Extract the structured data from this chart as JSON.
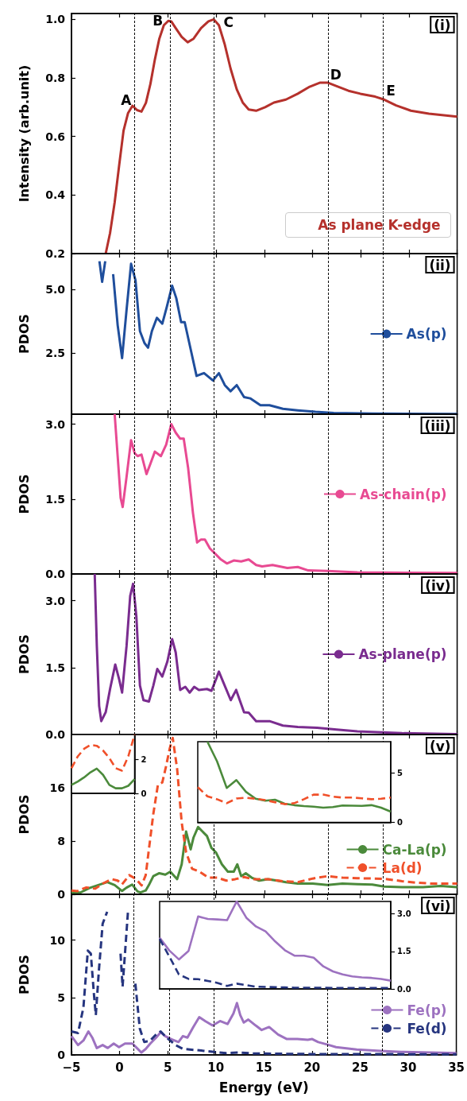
{
  "chart_data": [
    {
      "type": "line",
      "ylabel": "Intensity (arb.unit)",
      "xlim": [
        -5,
        35
      ],
      "xticks": [
        -5,
        0,
        5,
        10,
        15,
        20,
        25,
        30,
        35
      ],
      "ylim": [
        0.2,
        1.02
      ],
      "yticks": [
        0.2,
        0.4,
        0.6,
        0.8,
        {
          "value": 1,
          "label": "1.0"
        }
      ],
      "tick_labels": "y",
      "legend": "bottom right",
      "marker": "none",
      "annotations": [
        "(i)",
        {
          "text": "A",
          "x": 1.5,
          "y": 0.7
        },
        {
          "text": "B",
          "x": 5.2,
          "y": 1.0
        },
        {
          "text": "C",
          "x": 9.8,
          "y": 1.0
        },
        {
          "text": "D",
          "x": 21.6,
          "y": 0.785
        },
        {
          "text": "E",
          "x": 27.3,
          "y": 0.73
        }
      ],
      "ref_lines": [
        {
          "axis": "x",
          "value": 1.5,
          "color": "#000000",
          "line_style": "dashed"
        },
        {
          "axis": "x",
          "value": 5.2,
          "color": "#000000",
          "line_style": "dashed"
        },
        {
          "axis": "x",
          "value": 9.8,
          "color": "#000000",
          "line_style": "dashed"
        },
        {
          "axis": "x",
          "value": 21.6,
          "color": "#000000",
          "line_style": "dashed"
        },
        {
          "axis": "x",
          "value": 27.3,
          "color": "#000000",
          "line_style": "dashed"
        }
      ],
      "series": [
        {
          "name": "As plane K-edge",
          "color": "#b5312c",
          "line_style": "solid",
          "x": [
            -1.45,
            -1.0,
            -0.52,
            -0.06,
            0.4,
            0.87,
            1.33,
            1.8,
            2.26,
            2.72,
            3.19,
            3.65,
            4.11,
            4.58,
            5.04,
            5.35,
            5.81,
            6.43,
            7.05,
            7.66,
            8.44,
            9.2,
            9.76,
            10.29,
            10.9,
            11.5,
            12.14,
            12.76,
            13.38,
            14.15,
            15.08,
            16.0,
            17.24,
            18.47,
            19.71,
            20.8,
            21.56,
            22.5,
            23.73,
            24.96,
            26.5,
            27.43,
            28.67,
            30.2,
            32.07,
            35
          ],
          "values": [
            0.2,
            0.27,
            0.375,
            0.5,
            0.62,
            0.68,
            0.705,
            0.69,
            0.685,
            0.715,
            0.78,
            0.863,
            0.934,
            0.98,
            0.995,
            0.993,
            0.97,
            0.94,
            0.922,
            0.934,
            0.97,
            0.993,
            1.0,
            0.98,
            0.914,
            0.832,
            0.761,
            0.716,
            0.692,
            0.688,
            0.7,
            0.716,
            0.726,
            0.746,
            0.77,
            0.784,
            0.784,
            0.772,
            0.756,
            0.746,
            0.736,
            0.726,
            0.706,
            0.688,
            0.678,
            0.668
          ]
        }
      ]
    },
    {
      "type": "line",
      "ylabel": "PDOS",
      "xlim": [
        -5,
        35
      ],
      "xticks": [
        -5,
        0,
        5,
        10,
        15,
        20,
        25,
        30,
        35
      ],
      "ylim": [
        0.1,
        6.4
      ],
      "yticks": [
        2.5,
        {
          "value": 5,
          "label": "5.0"
        }
      ],
      "tick_labels": "y",
      "legend": "right",
      "marker": "none",
      "annotations": [
        "(ii)"
      ],
      "ref_lines": [
        {
          "axis": "x",
          "value": 1.5,
          "color": "#000000",
          "line_style": "dashed"
        },
        {
          "axis": "x",
          "value": 5.2,
          "color": "#000000",
          "line_style": "dashed"
        },
        {
          "axis": "x",
          "value": 9.8,
          "color": "#000000",
          "line_style": "dashed"
        },
        {
          "axis": "x",
          "value": 21.6,
          "color": "#000000",
          "line_style": "dashed"
        },
        {
          "axis": "x",
          "value": 27.3,
          "color": "#000000",
          "line_style": "dashed"
        }
      ],
      "series": [
        {
          "name": "As(p)",
          "color": "#1f4e9c",
          "line_style": "solid",
          "x": [
            -2.1,
            -1.82,
            -1.5,
            -1.15,
            -0.98,
            -0.68,
            -0.21,
            0.25,
            0.71,
            1.18,
            1.64,
            2.1,
            2.57,
            2.94,
            3.34,
            3.86,
            4.42,
            4.88,
            5.44,
            5.87,
            6.37,
            6.74,
            7.36,
            7.97,
            8.75,
            9.67,
            10.29,
            10.9,
            11.5,
            12.14,
            12.9,
            13.53,
            14.6,
            15.54,
            16.93,
            18.47,
            20.3,
            22.2,
            26.2,
            35
          ],
          "values": [
            6.1,
            5.29,
            6.1,
            null,
            null,
            5.59,
            3.59,
            2.3,
            4.18,
            6.0,
            5.35,
            3.36,
            2.89,
            2.71,
            3.36,
            3.88,
            3.65,
            4.3,
            5.14,
            4.65,
            3.71,
            3.71,
            2.65,
            1.6,
            1.71,
            1.42,
            1.71,
            1.24,
            1.0,
            1.24,
            0.77,
            0.72,
            0.45,
            0.45,
            0.31,
            0.25,
            0.19,
            0.15,
            0.12,
            0.11
          ]
        }
      ]
    },
    {
      "type": "line",
      "ylabel": "PDOS",
      "xlim": [
        -5,
        35
      ],
      "xticks": [
        -5,
        0,
        5,
        10,
        15,
        20,
        25,
        30,
        35
      ],
      "ylim": [
        0,
        3.2
      ],
      "yticks": [
        {
          "value": 0,
          "label": "0.0"
        },
        1.5,
        {
          "value": 3,
          "label": "3.0"
        }
      ],
      "tick_labels": "y",
      "legend": "right",
      "marker": "none",
      "annotations": [
        "(iii)"
      ],
      "ref_lines": [
        {
          "axis": "x",
          "value": 1.5,
          "color": "#000000",
          "line_style": "dashed"
        },
        {
          "axis": "x",
          "value": 5.2,
          "color": "#000000",
          "line_style": "dashed"
        },
        {
          "axis": "x",
          "value": 9.8,
          "color": "#000000",
          "line_style": "dashed"
        },
        {
          "axis": "x",
          "value": 21.6,
          "color": "#000000",
          "line_style": "dashed"
        },
        {
          "axis": "x",
          "value": 27.3,
          "color": "#000000",
          "line_style": "dashed"
        }
      ],
      "series": [
        {
          "name": "As-chain(p)",
          "color": "#e84a92",
          "line_style": "solid",
          "x": [
            -0.52,
            -0.21,
            0.1,
            0.31,
            0.71,
            1.18,
            1.55,
            1.86,
            2.26,
            2.78,
            3.19,
            3.65,
            4.27,
            4.82,
            5.35,
            5.81,
            6.27,
            6.64,
            7.1,
            7.6,
            8.03,
            8.44,
            8.84,
            9.36,
            9.83,
            10.44,
            11.12,
            11.83,
            12.6,
            13.38,
            14.15,
            14.77,
            15.85,
            17.39,
            18.47,
            19.56,
            21.56,
            24.65,
            35
          ],
          "values": [
            3.2,
            2.36,
            1.52,
            1.34,
            1.94,
            2.68,
            2.42,
            2.36,
            2.39,
            2.0,
            2.21,
            2.45,
            2.36,
            2.59,
            3.0,
            2.83,
            2.71,
            2.71,
            2.12,
            1.22,
            0.63,
            0.69,
            0.69,
            0.51,
            0.42,
            0.3,
            0.21,
            0.27,
            0.25,
            0.29,
            0.18,
            0.15,
            0.18,
            0.12,
            0.14,
            0.07,
            0.06,
            0.03,
            0.02
          ]
        }
      ]
    },
    {
      "type": "line",
      "ylabel": "PDOS",
      "xlim": [
        -5,
        35
      ],
      "xticks": [
        -5,
        0,
        5,
        10,
        15,
        20,
        25,
        30,
        35
      ],
      "ylim": [
        0,
        3.6
      ],
      "yticks": [
        {
          "value": 0,
          "label": "0.0"
        },
        1.5,
        {
          "value": 3,
          "label": "3.0"
        }
      ],
      "tick_labels": "y",
      "legend": "right",
      "marker": "none",
      "annotations": [
        "(iv)"
      ],
      "ref_lines": [
        {
          "axis": "x",
          "value": 1.5,
          "color": "#000000",
          "line_style": "dashed"
        },
        {
          "axis": "x",
          "value": 5.2,
          "color": "#000000",
          "line_style": "dashed"
        },
        {
          "axis": "x",
          "value": 9.8,
          "color": "#000000",
          "line_style": "dashed"
        },
        {
          "axis": "x",
          "value": 21.6,
          "color": "#000000",
          "line_style": "dashed"
        },
        {
          "axis": "x",
          "value": 27.3,
          "color": "#000000",
          "line_style": "dashed"
        }
      ],
      "series": [
        {
          "name": "As-plane(p)",
          "color": "#7a2c8f",
          "line_style": "solid",
          "x": [
            -2.59,
            -2.37,
            -2.13,
            -1.91,
            -1.45,
            -0.98,
            -0.46,
            -0.06,
            0.25,
            0.71,
            1.09,
            1.39,
            1.73,
            2.1,
            2.47,
            3.03,
            3.49,
            3.9,
            4.42,
            4.95,
            5.44,
            5.81,
            6.27,
            6.8,
            7.26,
            7.73,
            8.22,
            9.05,
            9.52,
            9.92,
            10.29,
            10.75,
            11.52,
            12.08,
            12.45,
            12.9,
            13.38,
            14.15,
            15.54,
            16.93,
            18.47,
            20.48,
            22.5,
            24.65,
            29.28,
            35
          ],
          "values": [
            3.6,
            1.98,
            0.64,
            0.3,
            0.5,
            1.04,
            1.57,
            1.24,
            0.94,
            1.98,
            3.11,
            3.38,
            2.65,
            1.1,
            0.77,
            0.74,
            1.1,
            1.47,
            1.3,
            1.64,
            2.14,
            1.84,
            1.0,
            1.07,
            0.94,
            1.07,
            1.0,
            1.02,
            0.98,
            1.2,
            1.41,
            1.17,
            0.77,
            1.0,
            0.77,
            0.5,
            0.49,
            0.3,
            0.3,
            0.2,
            0.17,
            0.15,
            0.11,
            0.07,
            0.03,
            0.01
          ]
        }
      ]
    },
    {
      "type": "line",
      "ylabel": "PDOS",
      "xlim": [
        -5,
        35
      ],
      "xticks": [
        -5,
        0,
        5,
        10,
        15,
        20,
        25,
        30,
        35
      ],
      "ylim": [
        0,
        24
      ],
      "yticks": [
        0,
        8,
        16
      ],
      "tick_labels": "y",
      "legend": "bottom right",
      "marker": "none",
      "annotations": [
        "(v)"
      ],
      "ref_lines": [
        {
          "axis": "x",
          "value": 1.5,
          "color": "#000000",
          "line_style": "dashed"
        },
        {
          "axis": "x",
          "value": 5.2,
          "color": "#000000",
          "line_style": "dashed"
        },
        {
          "axis": "x",
          "value": 9.8,
          "color": "#000000",
          "line_style": "dashed"
        },
        {
          "axis": "x",
          "value": 21.6,
          "color": "#000000",
          "line_style": "dashed"
        },
        {
          "axis": "x",
          "value": 27.3,
          "color": "#000000",
          "line_style": "dashed"
        }
      ],
      "series": [
        {
          "name": "Ca-La(p)",
          "color": "#4b8a3b",
          "line_style": "solid",
          "x": [
            -5,
            -4.07,
            -3.15,
            -2.22,
            -1.29,
            -0.52,
            0.25,
            0.71,
            1.29,
            1.85,
            2.16,
            2.7,
            3.03,
            3.49,
            4.11,
            4.73,
            5.25,
            5.96,
            6.43,
            6.89,
            7.36,
            7.66,
            8.13,
            8.59,
            9.05,
            9.52,
            9.98,
            10.6,
            11.22,
            11.83,
            12.2,
            12.6,
            13.07,
            13.69,
            14.46,
            15.39,
            16.31,
            17.24,
            18.47,
            20.02,
            21.56,
            23.1,
            24.65,
            26.2,
            27.43,
            29.28,
            31.45,
            33.3,
            35
          ],
          "values": [
            0.27,
            0.27,
            0.94,
            1.39,
            1.83,
            1.39,
            0.5,
            1.0,
            1.47,
            0.44,
            0.28,
            0.58,
            1.39,
            2.73,
            3.17,
            2.95,
            3.4,
            2.28,
            4.51,
            9.43,
            6.75,
            8.54,
            10.1,
            9.43,
            8.76,
            6.97,
            6.3,
            4.51,
            3.4,
            3.4,
            4.51,
            2.73,
            3.17,
            2.5,
            2.06,
            2.28,
            2.06,
            1.83,
            1.61,
            1.61,
            1.39,
            1.61,
            1.52,
            1.47,
            1.16,
            1.07,
            1.07,
            1.25,
            1.07
          ]
        },
        {
          "name": "La(d)",
          "color": "#f0502a",
          "line_style": "dashed",
          "x": [
            -5,
            -4.38,
            -3.46,
            -2.53,
            -1.76,
            -0.83,
            -0.21,
            0.25,
            0.99,
            1.72,
            2.27,
            2.7,
            3.03,
            3.49,
            3.96,
            4.42,
            4.82,
            5.19,
            5.5,
            5.96,
            6.43,
            6.89,
            7.51,
            8.28,
            9.21,
            10.14,
            11.06,
            11.99,
            12.9,
            13.84,
            15.39,
            16.93,
            18.47,
            20.02,
            21.56,
            23.1,
            24.65,
            26.5,
            27.74,
            29.28,
            30.83,
            32.37,
            35
          ],
          "values": [
            0.58,
            0.49,
            1.03,
            0.85,
            1.61,
            2.28,
            2.06,
            1.5,
            2.88,
            2.27,
            1.33,
            2.88,
            6.75,
            12.1,
            16.4,
            16.8,
            19.3,
            21.9,
            23.5,
            18.8,
            10.8,
            6.3,
            3.84,
            3.4,
            2.5,
            2.5,
            2.06,
            2.28,
            2.59,
            2.28,
            2.28,
            1.97,
            1.83,
            2.37,
            2.73,
            2.5,
            2.41,
            2.37,
            2.28,
            1.97,
            1.74,
            1.61,
            1.61
          ]
        }
      ]
    },
    {
      "type": "line",
      "ylabel": "PDOS",
      "xlabel": "Energy (eV)",
      "xlim": [
        -5,
        35
      ],
      "xticks": [
        {
          "value": -5,
          "label": "−5"
        },
        0,
        5,
        10,
        15,
        20,
        25,
        30,
        35
      ],
      "ylim": [
        0,
        14
      ],
      "yticks": [
        0,
        5,
        10
      ],
      "legend": "bottom right",
      "marker": "none",
      "annotations": [
        "(vi)"
      ],
      "ref_lines": [
        {
          "axis": "x",
          "value": 1.5,
          "color": "#000000",
          "line_style": "dashed"
        },
        {
          "axis": "x",
          "value": 5.2,
          "color": "#000000",
          "line_style": "dashed"
        },
        {
          "axis": "x",
          "value": 9.8,
          "color": "#000000",
          "line_style": "dashed"
        },
        {
          "axis": "x",
          "value": 21.6,
          "color": "#000000",
          "line_style": "dashed"
        },
        {
          "axis": "x",
          "value": 27.3,
          "color": "#000000",
          "line_style": "dashed"
        }
      ],
      "series": [
        {
          "name": "Fe(p)",
          "color": "#9d72c0",
          "line_style": "solid",
          "x": [
            -5,
            -4.32,
            -3.76,
            -3.24,
            -2.84,
            -2.37,
            -1.76,
            -1.23,
            -0.61,
            -0.06,
            0.56,
            1.33,
            1.8,
            2.26,
            2.72,
            3.19,
            3.8,
            4.27,
            4.73,
            5.35,
            6.12,
            6.58,
            7.05,
            7.66,
            8.28,
            8.9,
            9.67,
            10.44,
            11.22,
            11.83,
            12.2,
            12.54,
            12.91,
            13.38,
            14.15,
            14.77,
            15.54,
            16.47,
            17.39,
            18.47,
            19.56,
            20.02,
            20.64,
            21.56,
            22.5,
            24.65,
            27.12,
            29.28,
            32.37,
            35
          ],
          "values": [
            1.64,
            0.86,
            1.25,
            2.04,
            1.51,
            0.6,
            0.86,
            0.6,
            0.99,
            0.68,
            0.99,
            0.99,
            0.6,
            0.21,
            0.52,
            0.99,
            1.51,
            1.98,
            1.64,
            1.38,
            1.12,
            1.64,
            1.51,
            2.43,
            3.29,
            2.95,
            2.56,
            2.95,
            2.69,
            3.6,
            4.52,
            3.47,
            2.82,
            3.08,
            2.56,
            2.17,
            2.43,
            1.78,
            1.38,
            1.38,
            1.31,
            1.38,
            1.12,
            0.91,
            0.68,
            0.47,
            0.34,
            0.26,
            0.21,
            0.16
          ]
        },
        {
          "name": "Fe(d)",
          "color": "#26357f",
          "line_style": "dashed",
          "x": [
            -5,
            -4.32,
            -3.76,
            -3.3,
            -2.99,
            -2.68,
            -2.47,
            -2.16,
            -1.76,
            -1.29,
            -0.98,
            -0.55,
            -0.12,
            0.1,
            0.31,
            0.56,
            0.87,
            1.08,
            1.17,
            1.27,
            1.64,
            2.1,
            2.57,
            3.19,
            3.8,
            4.27,
            4.88,
            5.81,
            6.58,
            7.97,
            9.83,
            11.06,
            12.3,
            13.84,
            18.47,
            35
          ],
          "values": [
            2.04,
            1.91,
            4.13,
            9.09,
            8.83,
            5.43,
            3.47,
            7.26,
            11.44,
            12.48,
            null,
            null,
            null,
            8.83,
            5.95,
            8.83,
            12.48,
            null,
            null,
            null,
            6.21,
            2.3,
            1.12,
            1.25,
            1.78,
            2.04,
            1.51,
            0.86,
            0.52,
            0.42,
            0.26,
            0.16,
            0.21,
            0.13,
            0.08,
            0.05
          ]
        }
      ]
    },
    {
      "type": "line",
      "categories": [
        null,
        null,
        null,
        null,
        null,
        null,
        null,
        null,
        null,
        null,
        null
      ],
      "ylim": [
        0,
        3.5
      ],
      "yticks": [
        0,
        2
      ],
      "tick_labels": "y",
      "marker": "none",
      "series": [
        {
          "color": "#f0502a",
          "line_style": "dashed",
          "values": [
            1.5,
            2.2,
            2.65,
            2.88,
            2.83,
            2.55,
            2.1,
            1.5,
            1.35,
            2.2,
            3.5
          ]
        },
        {
          "color": "#4b8a3b",
          "line_style": "solid",
          "values": [
            0.5,
            0.7,
            0.95,
            1.25,
            1.47,
            1.1,
            0.5,
            0.3,
            0.3,
            0.45,
            0.85
          ]
        }
      ]
    },
    {
      "type": "line",
      "categories": [
        null,
        null,
        null,
        null,
        null,
        null,
        null,
        null,
        null,
        null,
        null,
        null,
        null,
        null,
        null,
        null,
        null,
        null,
        null,
        null,
        null
      ],
      "ylim": [
        0,
        8.2
      ],
      "yticks": [
        0,
        5
      ],
      "tick_labels": "y",
      "marker": "none",
      "series": [
        {
          "color": "#4b8a3b",
          "line_style": "solid",
          "values": [
            null,
            8.2,
            6.2,
            3.5,
            4.3,
            3.1,
            2.4,
            2.2,
            2.3,
            1.9,
            1.75,
            1.65,
            1.6,
            1.5,
            1.55,
            1.72,
            1.7,
            1.68,
            1.75,
            1.5,
            1.09
          ]
        },
        {
          "color": "#f0502a",
          "line_style": "dashed",
          "values": [
            3.58,
            2.65,
            2.35,
            1.95,
            2.42,
            2.5,
            2.4,
            2.26,
            2.05,
            1.85,
            1.95,
            2.35,
            2.82,
            2.82,
            2.62,
            2.52,
            2.52,
            2.45,
            2.35,
            2.4,
            2.52
          ]
        }
      ]
    },
    {
      "type": "line",
      "categories": [
        null,
        null,
        null,
        null,
        null,
        null,
        null,
        null,
        null,
        null,
        null,
        null,
        null,
        null,
        null,
        null,
        null,
        null,
        null,
        null,
        null,
        null,
        null,
        null,
        null
      ],
      "ylim": [
        0,
        3.5
      ],
      "yticks": [
        {
          "value": 0,
          "label": "0.0"
        },
        1.5,
        {
          "value": 3,
          "label": "3.0"
        }
      ],
      "tick_labels": "y",
      "marker": "none",
      "series": [
        {
          "color": "#9d72c0",
          "line_style": "solid",
          "values": [
            2.05,
            1.54,
            1.18,
            1.52,
            2.9,
            2.8,
            2.78,
            2.75,
            3.5,
            2.85,
            2.5,
            2.3,
            1.9,
            1.55,
            1.33,
            1.33,
            1.25,
            0.9,
            0.7,
            0.58,
            0.5,
            0.46,
            0.44,
            0.4,
            0.33
          ]
        },
        {
          "color": "#26357f",
          "line_style": "dashed",
          "values": [
            2.0,
            1.3,
            0.58,
            0.4,
            0.39,
            0.32,
            0.24,
            0.12,
            0.21,
            0.15,
            0.09,
            0.08,
            0.07,
            0.06,
            0.05,
            0.05,
            0.05,
            0.05,
            0.04,
            0.04,
            0.04,
            0.04,
            0.04,
            0.04,
            0.04
          ]
        }
      ]
    }
  ]
}
